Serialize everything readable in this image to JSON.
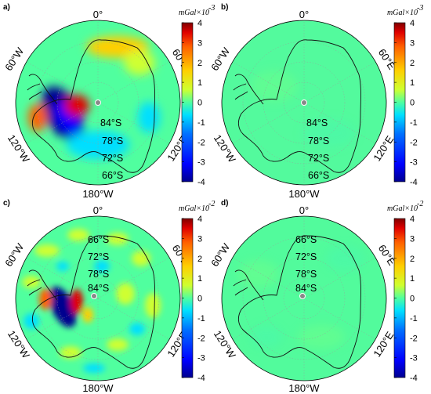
{
  "map_data": {
    "projection": "south polar stereographic",
    "region": "Antarctica",
    "panels": [
      {
        "label": "a)",
        "colorbar": {
          "unit_text": "mGal×10",
          "exponent": "-3",
          "ticks": [
            "4",
            "3",
            "2",
            "1",
            "0",
            "-1",
            "-2",
            "-3",
            "-4"
          ]
        },
        "meridian_labels": {
          "top": "0°",
          "left": "60°W",
          "right": "60°E",
          "lower_left": "120°W",
          "lower_right": "120°E",
          "bottom": "180°W"
        },
        "latitude_labels": [
          "84°S",
          "78°S",
          "72°S",
          "66°S"
        ],
        "anomalies": [
          {
            "sign": "negative",
            "magnitude": 3.8,
            "location": "West Antarctica / Ross Sea sector"
          },
          {
            "sign": "positive",
            "magnitude": 3.6,
            "location": "near the pole, toward West Antarctica"
          },
          {
            "sign": "positive",
            "magnitude": 2.0,
            "location": "Amundsen Sea coast"
          },
          {
            "sign": "positive",
            "magnitude": 1.2,
            "location": "Dronning Maud Land coast"
          }
        ]
      },
      {
        "label": "b)",
        "colorbar": {
          "unit_text": "mGal×10",
          "exponent": "-3",
          "ticks": [
            "4",
            "3",
            "2",
            "1",
            "0",
            "-1",
            "-2",
            "-3",
            "-4"
          ]
        },
        "meridian_labels": {
          "top": "0°",
          "left": "60°W",
          "right": "60°E",
          "lower_left": "120°W",
          "lower_right": "120°E",
          "bottom": "180°W"
        },
        "latitude_labels": [
          "84°S",
          "78°S",
          "72°S",
          "66°S"
        ],
        "anomalies": [
          {
            "sign": "near zero",
            "magnitude": 0.05,
            "location": "whole map"
          }
        ]
      },
      {
        "label": "c)",
        "colorbar": {
          "unit_text": "mGal×10",
          "exponent": "-2",
          "ticks": [
            "4",
            "3",
            "2",
            "1",
            "0",
            "-1",
            "-2",
            "-3",
            "-4"
          ]
        },
        "meridian_labels": {
          "top": "0°",
          "left": "60°W",
          "right": "60°E",
          "lower_left": "120°W",
          "lower_right": "120°E",
          "bottom": "180°W"
        },
        "latitude_labels": [
          "66°S",
          "72°S",
          "78°S",
          "84°S"
        ],
        "anomalies": [
          {
            "sign": "negative",
            "magnitude": 3.8,
            "location": "West Antarctica / Amundsen coast"
          },
          {
            "sign": "positive",
            "magnitude": 3.0,
            "location": "Antarctic Peninsula / Amundsen coast"
          },
          {
            "sign": "positive",
            "magnitude": 1.2,
            "location": "East Antarctica, scattered"
          }
        ]
      },
      {
        "label": "d)",
        "colorbar": {
          "unit_text": "mGal×10",
          "exponent": "-2",
          "ticks": [
            "4",
            "3",
            "2",
            "1",
            "0",
            "-1",
            "-2",
            "-3",
            "-4"
          ]
        },
        "meridian_labels": {
          "top": "0°",
          "left": "60°W",
          "right": "60°E",
          "lower_left": "120°W",
          "lower_right": "120°E",
          "bottom": "180°W"
        },
        "latitude_labels": [
          "66°S",
          "72°S",
          "78°S",
          "84°S"
        ],
        "anomalies": [
          {
            "sign": "near zero",
            "magnitude": 0.1,
            "location": "whole map"
          }
        ]
      }
    ],
    "colormap": [
      "#00008f",
      "#0000ff",
      "#0070ff",
      "#00dfff",
      "#50ff9f",
      "#cfff30",
      "#ffcf00",
      "#ff6000",
      "#df0000",
      "#800000"
    ]
  }
}
